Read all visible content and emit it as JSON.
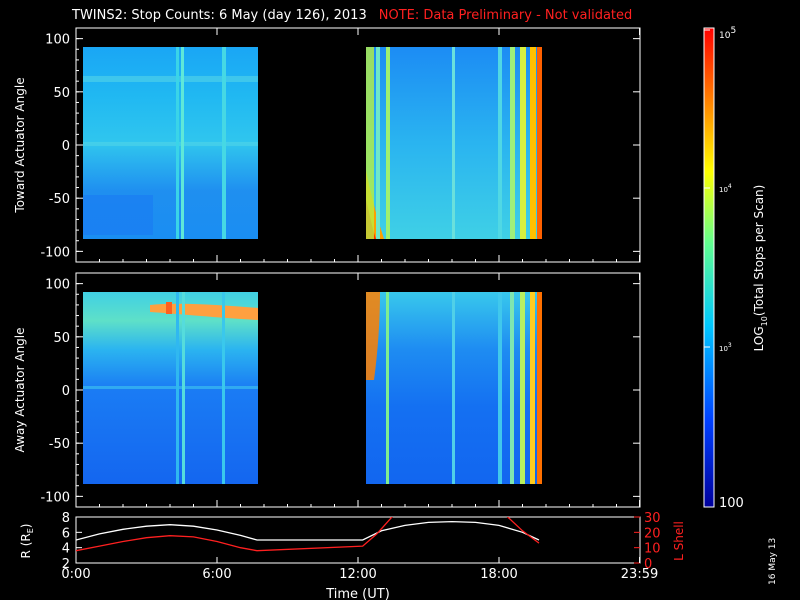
{
  "header": {
    "title": "TWINS2: Stop Counts:  6 May (day 126), 2013",
    "note": "NOTE: Data Preliminary - Not validated"
  },
  "datestamp": "16 May 13",
  "chart_data": [
    {
      "type": "heatmap",
      "ylabel": "Toward Actuator Angle",
      "ylim": [
        -110,
        110
      ],
      "yticks": [
        "100",
        "50",
        "0",
        "-50",
        "-100"
      ],
      "data_angle_range": [
        -90,
        90
      ],
      "data_segments_hours": [
        [
          0,
          7.7
        ],
        [
          12.2,
          19.7
        ]
      ]
    },
    {
      "type": "heatmap",
      "ylabel": "Away Actuator Angle",
      "ylim": [
        -110,
        110
      ],
      "yticks": [
        "100",
        "50",
        "0",
        "-50",
        "-100"
      ],
      "data_angle_range": [
        -90,
        90
      ],
      "data_segments_hours": [
        [
          0,
          7.7
        ],
        [
          12.2,
          19.7
        ]
      ]
    },
    {
      "type": "line",
      "xlabel": "Time (UT)",
      "xticks": [
        "0:00",
        "6:00",
        "12:00",
        "18:00",
        "23:59"
      ],
      "xlim": [
        0,
        24
      ],
      "ylabel_left": "R (R",
      "ylabel_left_sub": "E",
      "ylabel_left_end": ")",
      "ylim_left": [
        2,
        8
      ],
      "yticks_left": [
        "8",
        "6",
        "4",
        "2"
      ],
      "ylabel_right": "L Shell",
      "ylim_right": [
        0,
        30
      ],
      "yticks_right": [
        "30",
        "20",
        "10",
        "0"
      ],
      "series": [
        {
          "axis": "left",
          "color": "#ffffff",
          "x": [
            0,
            1,
            2,
            3,
            4,
            5,
            6,
            7,
            7.7,
            12.2,
            13,
            14,
            15,
            16,
            17,
            18,
            19,
            19.7
          ],
          "y": [
            5.0,
            5.8,
            6.4,
            6.8,
            7.0,
            6.8,
            6.3,
            5.6,
            5.0,
            5.0,
            6.2,
            6.9,
            7.3,
            7.4,
            7.3,
            6.9,
            6.0,
            5.0
          ]
        },
        {
          "axis": "right",
          "color": "#ff2020",
          "x": [
            0,
            1,
            2,
            3,
            4,
            5,
            6,
            7,
            7.7,
            12.2,
            12.8,
            13.5,
            18.3,
            19,
            19.7
          ],
          "y": [
            8,
            11,
            14,
            16.5,
            17.8,
            17,
            14,
            10,
            8,
            11,
            19,
            31,
            31,
            21,
            13
          ]
        }
      ]
    }
  ],
  "colorbar": {
    "label_log": "LOG",
    "label_sub": "10",
    "label_rest": "(Total Stops per Scan)",
    "top_base": "10",
    "top_exp": "5",
    "mid_base": "10",
    "mid_exp": "4",
    "low_base": "10",
    "low_exp": "3",
    "bottom": "100",
    "range": [
      100,
      100000
    ],
    "colors": [
      "#00009c",
      "#0050ff",
      "#00c8ff",
      "#80ff80",
      "#ffff00",
      "#ff8000",
      "#ff0000"
    ]
  }
}
